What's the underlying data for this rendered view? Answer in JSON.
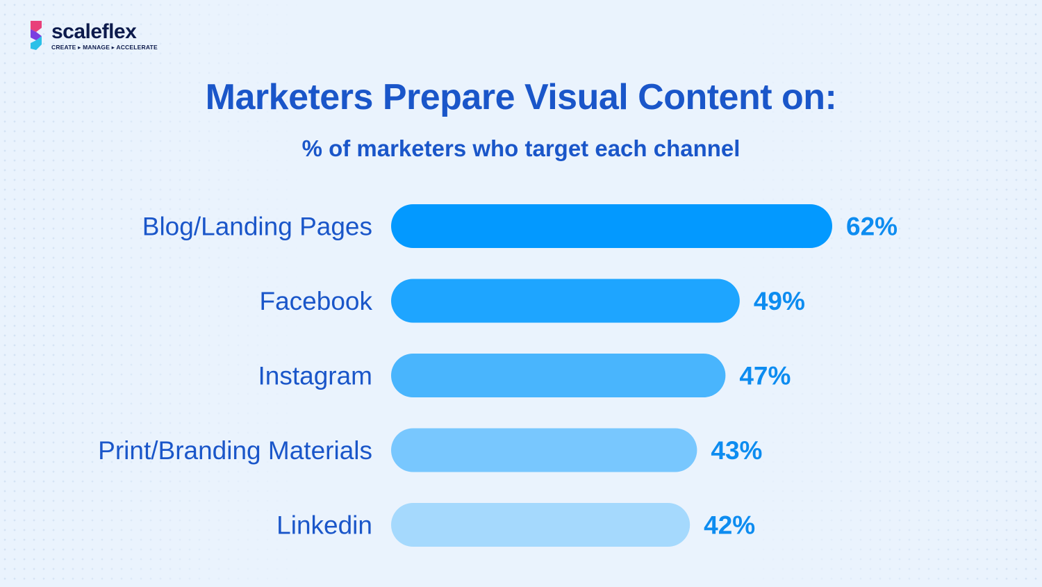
{
  "brand": {
    "name": "scaleflex",
    "tagline": "CREATE ▸ MANAGE ▸ ACCELERATE"
  },
  "chart_data": {
    "type": "bar",
    "orientation": "horizontal",
    "title": "Marketers Prepare Visual Content on:",
    "subtitle": "% of marketers who target each channel",
    "categories": [
      "Blog/Landing Pages",
      "Facebook",
      "Instagram",
      "Print/Branding Materials",
      "Linkedin"
    ],
    "values": [
      62,
      49,
      47,
      43,
      42
    ],
    "value_labels": [
      "62%",
      "49%",
      "47%",
      "43%",
      "42%"
    ],
    "unit": "%",
    "grid": false,
    "legend": "none",
    "colors": [
      "#0399ff",
      "#1ea5ff",
      "#49b5fd",
      "#78c7fe",
      "#a5d9fd"
    ],
    "label_color": "#1a56c9",
    "value_label_color": "#0d8cf0"
  }
}
